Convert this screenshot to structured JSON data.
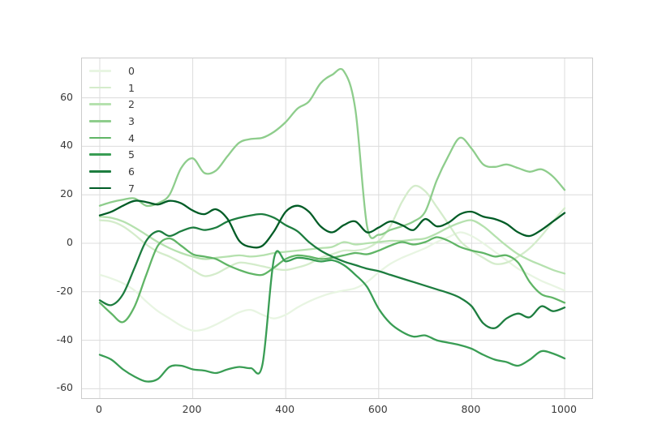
{
  "chart_data": {
    "type": "line",
    "title": "",
    "xlabel": "",
    "ylabel": "",
    "grid": true,
    "x_ticks": [
      0,
      200,
      400,
      600,
      800,
      1000
    ],
    "y_ticks": [
      -60,
      -40,
      -20,
      0,
      20,
      40,
      60
    ],
    "xlim": [
      -38,
      1059
    ],
    "ylim": [
      -64,
      76
    ],
    "x_step": 25,
    "legend_position": "upper left",
    "legend_entries": [
      "0",
      "1",
      "2",
      "3",
      "4",
      "5",
      "6",
      "7"
    ],
    "series": [
      {
        "name": "0",
        "color": "#e8f5e2",
        "values": [
          -13,
          -14.5,
          -16.5,
          -19.5,
          -24,
          -28,
          -31,
          -34,
          -36,
          -35.5,
          -33.5,
          -31,
          -28.5,
          -27.5,
          -29.5,
          -31,
          -29.5,
          -26.5,
          -24,
          -22,
          -20.5,
          -19.5,
          -18.5,
          -16,
          -12,
          -8.5,
          -6,
          -4,
          -2,
          0.5,
          2.5,
          4.5,
          3,
          0,
          -3.5,
          -7,
          -10.5,
          -13,
          -15.5,
          -17.5,
          -19.5
        ]
      },
      {
        "name": "1",
        "color": "#d4eccb",
        "values": [
          9.5,
          9,
          7,
          3.5,
          -0.5,
          -3.5,
          -5.5,
          -8,
          -11,
          -13.5,
          -12.5,
          -10,
          -8,
          -8.5,
          -9.5,
          -10.5,
          -11,
          -10,
          -8.5,
          -6,
          -4.5,
          -3,
          -3,
          -2,
          1,
          7,
          17,
          23.5,
          21.5,
          15,
          8,
          1,
          -3,
          -6,
          -8.5,
          -8,
          -5.5,
          -2,
          3,
          9,
          14.5
        ]
      },
      {
        "name": "2",
        "color": "#b5e1ae",
        "values": [
          11,
          10.5,
          9,
          6.5,
          3.5,
          0.5,
          -2,
          -4,
          -5.5,
          -6.5,
          -6,
          -5.5,
          -5,
          -5.5,
          -5,
          -4,
          -3.5,
          -3,
          -2.5,
          -2,
          -1.5,
          0.5,
          -0.5,
          0,
          0.5,
          1,
          1,
          1.5,
          2,
          4,
          6.5,
          8.5,
          9.5,
          7,
          3,
          -1,
          -4.5,
          -7,
          -9,
          -11,
          -12.5
        ]
      },
      {
        "name": "3",
        "color": "#8ecd8c",
        "values": [
          15.5,
          17,
          18,
          18.5,
          15.5,
          16.5,
          20,
          31,
          35,
          29,
          30,
          36,
          41.5,
          43,
          43.5,
          46,
          50,
          55.5,
          58.5,
          66,
          69.5,
          71,
          55,
          7,
          3.5,
          5.5,
          7,
          9,
          13,
          26,
          36,
          43.5,
          39,
          32.5,
          31.5,
          32.5,
          31,
          29.5,
          30.5,
          27.5,
          22
        ]
      },
      {
        "name": "4",
        "color": "#60b566",
        "values": [
          -24.5,
          -29,
          -32.5,
          -26,
          -13,
          -1,
          2,
          -1,
          -4.5,
          -5.5,
          -6.5,
          -9,
          -11,
          -12.5,
          -13,
          -10,
          -6.5,
          -5,
          -5.5,
          -6.5,
          -6,
          -5,
          -4,
          -4.5,
          -3,
          -1,
          0.5,
          -0.5,
          0.5,
          2.5,
          1,
          -1.5,
          -3,
          -4,
          -5.5,
          -5,
          -8,
          -16,
          -21,
          -22.5,
          -24.5
        ]
      },
      {
        "name": "5",
        "color": "#399d54",
        "values": [
          -46,
          -48,
          -52,
          -55,
          -57,
          -56,
          -51,
          -50.5,
          -52,
          -52.5,
          -53.5,
          -52,
          -51,
          -51.5,
          -50,
          -6,
          -7.5,
          -6,
          -6.5,
          -7.5,
          -7,
          -9,
          -13,
          -18,
          -27,
          -33,
          -36.5,
          -38.5,
          -38,
          -40,
          -41,
          -42,
          -43.5,
          -46,
          -48,
          -49,
          -50.5,
          -48,
          -44.5,
          -45.5,
          -47.5
        ]
      },
      {
        "name": "6",
        "color": "#1d7d3f",
        "values": [
          -23.5,
          -25.5,
          -21,
          -10,
          1,
          5,
          3,
          5,
          6.5,
          5.5,
          6.5,
          9,
          10.5,
          11.5,
          12,
          10.5,
          7.5,
          5,
          0.5,
          -3,
          -5.5,
          -7.5,
          -9,
          -10.5,
          -11.5,
          -13,
          -14.5,
          -16,
          -17.5,
          -19,
          -20.5,
          -22.5,
          -26,
          -33,
          -35,
          -31,
          -29,
          -30.5,
          -26,
          -28,
          -26.5
        ]
      },
      {
        "name": "7",
        "color": "#005c26",
        "values": [
          11.5,
          13,
          15.5,
          17.5,
          17,
          16,
          17.5,
          16.5,
          13.5,
          12,
          14,
          10,
          1,
          -1.5,
          -1,
          5,
          13,
          15.5,
          13,
          7,
          4.5,
          7.5,
          9,
          4.5,
          6.5,
          9,
          7.5,
          5.5,
          10,
          7,
          8.5,
          12,
          13,
          11,
          10,
          8,
          4.5,
          3,
          5.5,
          9,
          12.5
        ]
      }
    ]
  },
  "style": {
    "grid_color": "#dcdcdc",
    "spine_color": "#cccccc",
    "tick_label_color": "#3a3a3a",
    "background_color": "#ffffff",
    "line_width": 2.3
  }
}
